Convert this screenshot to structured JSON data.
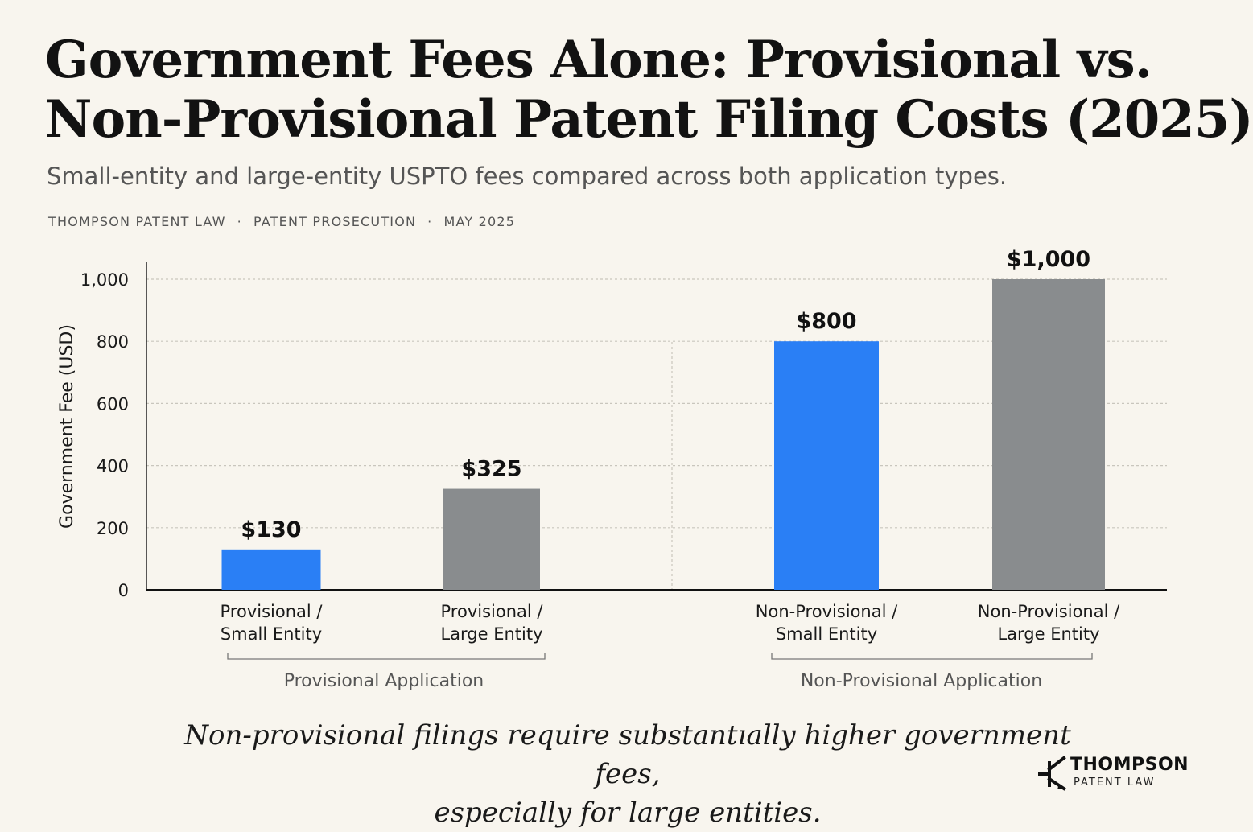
{
  "header": {
    "title_line1": "Government Fees Alone: Provisional vs.",
    "title_line2": "Non-Provisional Patent Filing Costs (2025)",
    "subtitle": "Small-entity and large-entity USPTO fees compared across both application types.",
    "meta": [
      "THOMPSON PATENT LAW",
      "PATENT PROSECUTION",
      "MAY 2025"
    ]
  },
  "chart_data": {
    "type": "bar",
    "ylabel": "Government Fee (USD)",
    "xlabel": "",
    "ylim": [
      0,
      1000
    ],
    "yticks": [
      0,
      200,
      400,
      600,
      800,
      1000
    ],
    "ytick_labels": [
      "0",
      "200",
      "400",
      "600",
      "800",
      "1,000"
    ],
    "grid": true,
    "categories": [
      [
        "Provisional /",
        "Small Entity"
      ],
      [
        "Provisional /",
        "Large Entity"
      ],
      [
        "Non-Provisional /",
        "Small Entity"
      ],
      [
        "Non-Provisional /",
        "Large Entity"
      ]
    ],
    "values": [
      130,
      325,
      800,
      1000
    ],
    "value_labels": [
      "$130",
      "$325",
      "$800",
      "$1,000"
    ],
    "bar_colors": [
      "#2a7ff5",
      "#898c8e",
      "#2a7ff5",
      "#898c8e"
    ],
    "groups": [
      {
        "label": "Provisional Application",
        "members": [
          0,
          1
        ]
      },
      {
        "label": "Non-Provisional Application",
        "members": [
          2,
          3
        ]
      }
    ]
  },
  "takeaway": {
    "line1": "Non-provisional filings require substantıally higher government fees,",
    "line2": "especially for large entities."
  },
  "logo": {
    "name": "THOMPSON",
    "sub": "PATENT LAW",
    "icon": "transistor-mark-icon"
  }
}
